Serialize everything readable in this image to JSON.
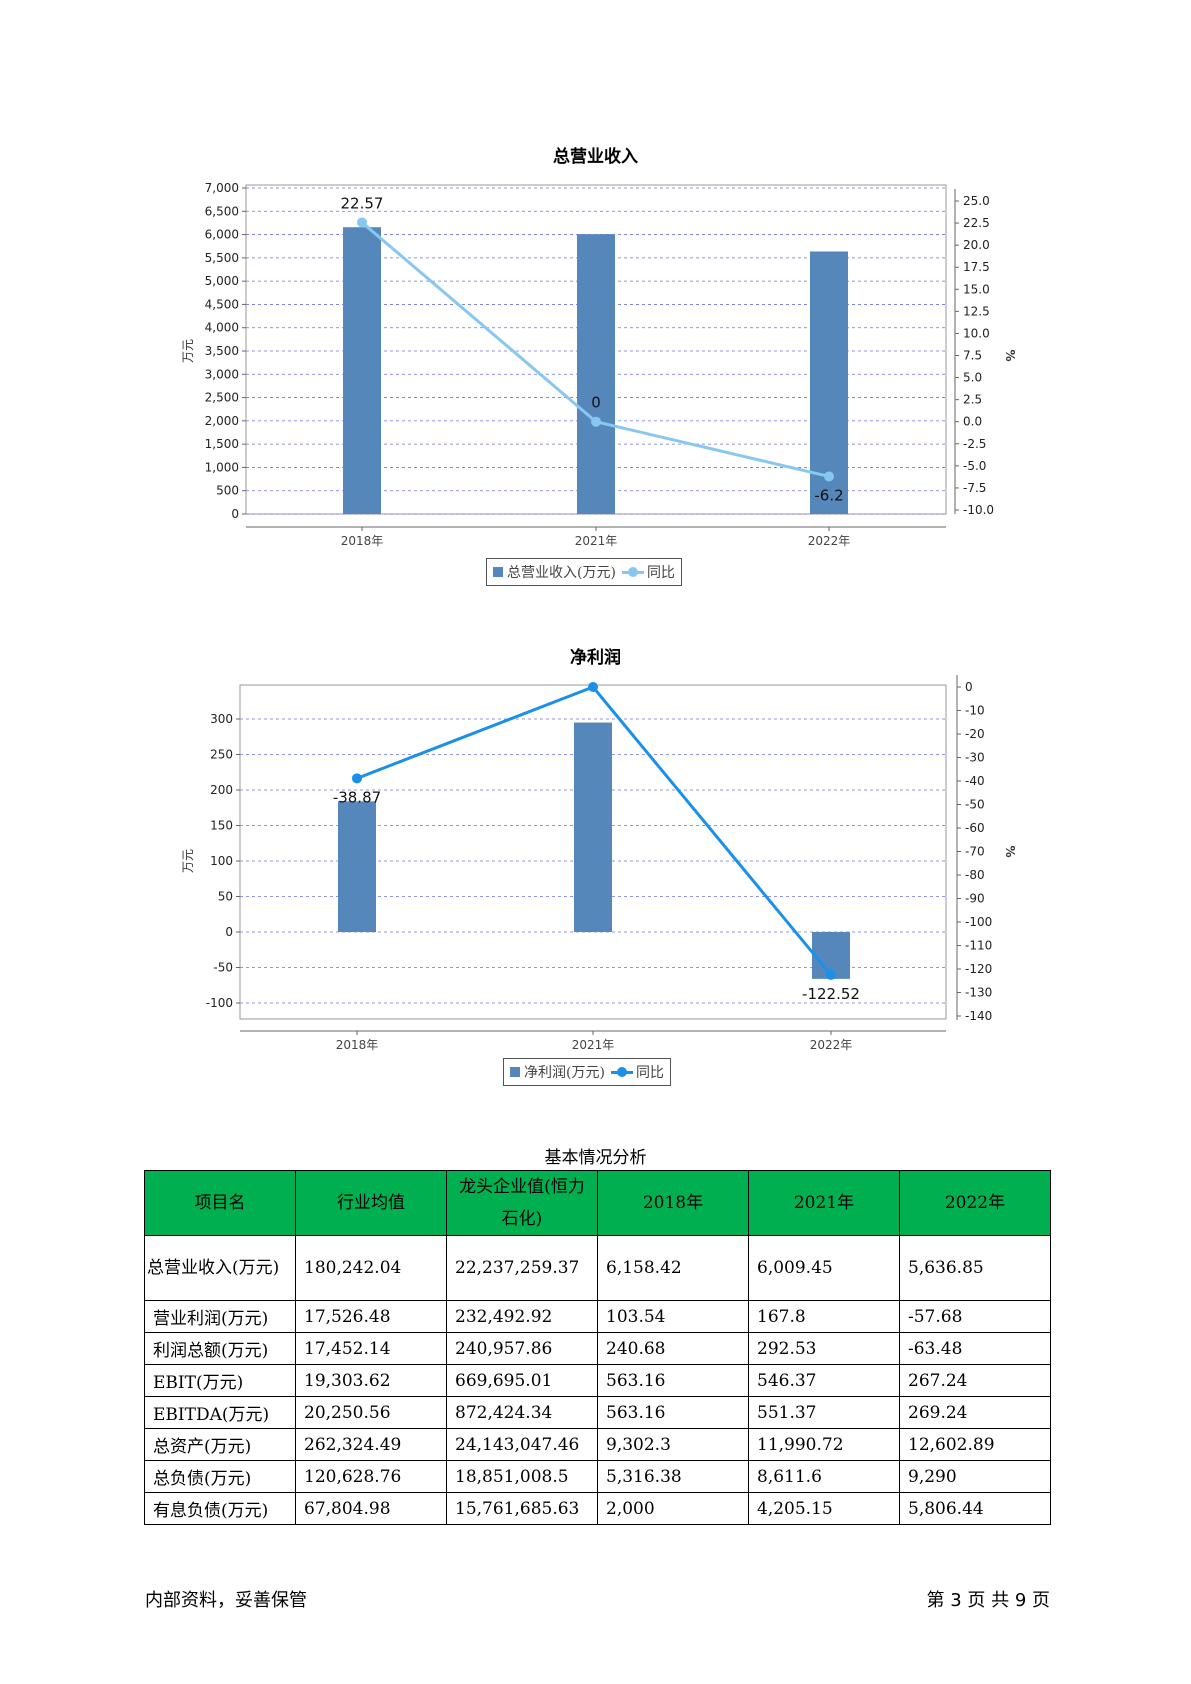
{
  "chart_data": [
    {
      "type": "bar",
      "title": "总营业收入",
      "categories": [
        "2018年",
        "2021年",
        "2022年"
      ],
      "series": [
        {
          "name": "总营业收入(万元)",
          "type": "bar",
          "axis": "left",
          "values": [
            6158.42,
            6009.45,
            5636.85
          ]
        },
        {
          "name": "同比",
          "type": "line",
          "axis": "right",
          "values": [
            22.57,
            0,
            -6.2
          ],
          "labels": [
            "22.57",
            "0",
            "-6.2"
          ]
        }
      ],
      "ylabel": "万元",
      "y2label": "%",
      "ylim": [
        0,
        7000
      ],
      "yticks": [
        "0",
        "500",
        "1,000",
        "1,500",
        "2,000",
        "2,500",
        "3,000",
        "3,500",
        "4,000",
        "4,500",
        "5,000",
        "5,500",
        "6,000",
        "6,500",
        "7,000"
      ],
      "y2lim": [
        -10,
        25
      ],
      "y2ticks": [
        "-10.0",
        "-7.5",
        "-5.0",
        "-2.5",
        "0.0",
        "2.5",
        "5.0",
        "7.5",
        "10.0",
        "12.5",
        "15.0",
        "17.5",
        "20.0",
        "22.5",
        "25.0"
      ],
      "grid": true,
      "legend": "bottom-center",
      "colors": {
        "bar": "#5587bb",
        "line": "#88c8f0"
      }
    },
    {
      "type": "bar",
      "title": "净利润",
      "categories": [
        "2018年",
        "2021年",
        "2022年"
      ],
      "series": [
        {
          "name": "净利润(万元)",
          "type": "bar",
          "axis": "left",
          "values": [
            184,
            295,
            -66
          ]
        },
        {
          "name": "同比",
          "type": "line",
          "axis": "right",
          "values": [
            -38.87,
            0,
            -122.52
          ],
          "labels": [
            "-38.87",
            "",
            "-122.52"
          ]
        }
      ],
      "ylabel": "万元",
      "y2label": "%",
      "ylim": [
        -100,
        300
      ],
      "yticks": [
        "-100",
        "-50",
        "0",
        "50",
        "100",
        "150",
        "200",
        "250",
        "300"
      ],
      "y2lim": [
        -140,
        0
      ],
      "y2ticks": [
        "-140",
        "-130",
        "-120",
        "-110",
        "-100",
        "-90",
        "-80",
        "-70",
        "-60",
        "-50",
        "-40",
        "-30",
        "-20",
        "-10",
        "0"
      ],
      "grid": true,
      "legend": "bottom-center",
      "colors": {
        "bar": "#5587bb",
        "line": "#1a90e8"
      }
    }
  ],
  "table": {
    "title": "基本情况分析",
    "headers": [
      "项目名",
      "行业均值",
      "龙头企业值(恒力石化)",
      "2018年",
      "2021年",
      "2022年"
    ],
    "rows": [
      [
        "总营业收入(万元)",
        "180,242.04",
        "22,237,259.37",
        "6,158.42",
        "6,009.45",
        "5,636.85"
      ],
      [
        "营业利润(万元)",
        "17,526.48",
        "232,492.92",
        "103.54",
        "167.8",
        "-57.68"
      ],
      [
        "利润总额(万元)",
        "17,452.14",
        "240,957.86",
        "240.68",
        "292.53",
        "-63.48"
      ],
      [
        "EBIT(万元)",
        "19,303.62",
        "669,695.01",
        "563.16",
        "546.37",
        "267.24"
      ],
      [
        "EBITDA(万元)",
        "20,250.56",
        "872,424.34",
        "563.16",
        "551.37",
        "269.24"
      ],
      [
        "总资产(万元)",
        "262,324.49",
        "24,143,047.46",
        "9,302.3",
        "11,990.72",
        "12,602.89"
      ],
      [
        "总负债(万元)",
        "120,628.76",
        "18,851,008.5",
        "5,316.38",
        "8,611.6",
        "9,290"
      ],
      [
        "有息负债(万元)",
        "67,804.98",
        "15,761,685.63",
        "2,000",
        "4,205.15",
        "5,806.44"
      ]
    ],
    "header_color": "#00b050"
  },
  "footer": {
    "left": "内部资料，妥善保管",
    "right": "第 3 页  共 9 页"
  }
}
